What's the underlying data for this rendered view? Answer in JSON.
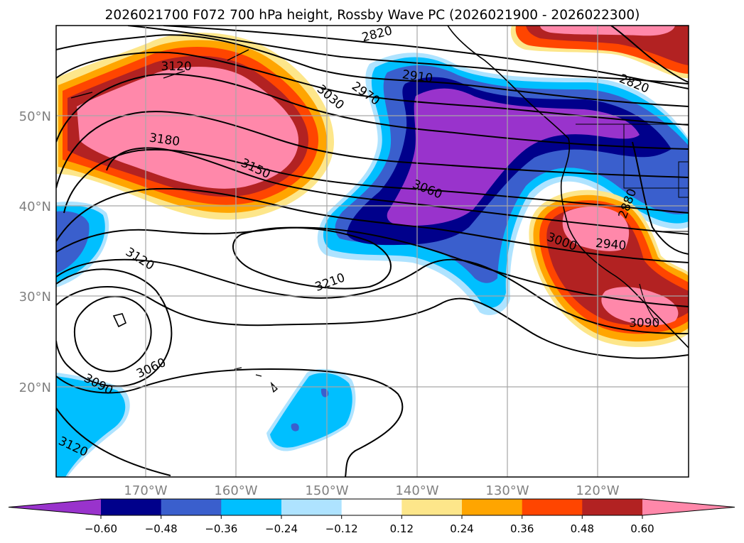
{
  "title": "2026021700 F072 700 hPa height, Rossby Wave PC (2026021900 - 2026022300)",
  "map": {
    "lon_range": [
      -180,
      -110
    ],
    "lat_range": [
      10,
      60
    ],
    "lat_ticks": [
      {
        "value": 20,
        "label": "20°N"
      },
      {
        "value": 30,
        "label": "30°N"
      },
      {
        "value": 40,
        "label": "40°N"
      },
      {
        "value": 50,
        "label": "50°N"
      }
    ],
    "lon_ticks": [
      {
        "value": -170,
        "label": "170°W"
      },
      {
        "value": -160,
        "label": "160°W"
      },
      {
        "value": -150,
        "label": "150°W"
      },
      {
        "value": -140,
        "label": "140°W"
      },
      {
        "value": -130,
        "label": "130°W"
      },
      {
        "value": -120,
        "label": "120°W"
      }
    ],
    "grid": true
  },
  "colorbar": {
    "levels": [
      "−0.60",
      "−0.48",
      "−0.36",
      "−0.24",
      "−0.12",
      "0.12",
      "0.24",
      "0.36",
      "0.48",
      "0.60"
    ],
    "colors": [
      "#9933cc",
      "#00008b",
      "#3a5fcd",
      "#00bfff",
      "#aee3ff",
      "#ffffff",
      "#fde68a",
      "#ffa500",
      "#ff4500",
      "#b22222",
      "#ff88aa"
    ],
    "extend": "both"
  },
  "contour_labels": [
    {
      "text": "2820",
      "lon": -144.5,
      "lat": 59.1,
      "angle": -14
    },
    {
      "text": "2820",
      "lon": -116,
      "lat": 53.6,
      "angle": 22
    },
    {
      "text": "2910",
      "lon": -140,
      "lat": 54.4,
      "angle": 8
    },
    {
      "text": "2970",
      "lon": -145.7,
      "lat": 52.5,
      "angle": 35
    },
    {
      "text": "3030",
      "lon": -149.6,
      "lat": 52.1,
      "angle": 40
    },
    {
      "text": "3120",
      "lon": -166.7,
      "lat": 55.5,
      "angle": 0
    },
    {
      "text": "3180",
      "lon": -168,
      "lat": 47.4,
      "angle": 8
    },
    {
      "text": "3150",
      "lon": -157.9,
      "lat": 44.2,
      "angle": 25
    },
    {
      "text": "3060",
      "lon": -138.9,
      "lat": 41.9,
      "angle": 22
    },
    {
      "text": "2880",
      "lon": -116.8,
      "lat": 40.3,
      "angle": -70
    },
    {
      "text": "2940",
      "lon": -118.6,
      "lat": 35.8,
      "angle": 5
    },
    {
      "text": "3000",
      "lon": -124,
      "lat": 36.1,
      "angle": 20
    },
    {
      "text": "3120",
      "lon": -170.7,
      "lat": 34.2,
      "angle": 32
    },
    {
      "text": "3210",
      "lon": -149.7,
      "lat": 31.6,
      "angle": -20
    },
    {
      "text": "3090",
      "lon": -114.9,
      "lat": 27.1,
      "angle": 0
    },
    {
      "text": "3060",
      "lon": -169.5,
      "lat": 22.1,
      "angle": -25
    },
    {
      "text": "3090",
      "lon": -175.3,
      "lat": 20.3,
      "angle": 28
    },
    {
      "text": "3120",
      "lon": -178.1,
      "lat": 13.4,
      "angle": 25
    }
  ]
}
